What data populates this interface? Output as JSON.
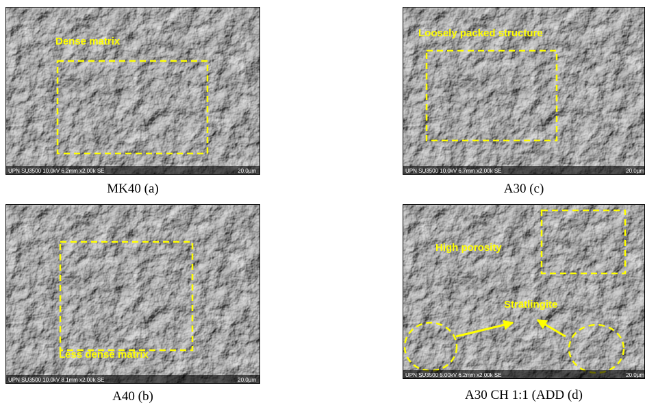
{
  "panels": [
    {
      "caption": "MK40 (a)",
      "annotations": [
        "Dense matrix"
      ],
      "info": "UPN SU3500 10.0kV 6.2mm x2.00k SE",
      "scale": "20.0µm"
    },
    {
      "caption": "A40 (b)",
      "annotations": [
        "Less dense matrix"
      ],
      "info": "UPN SU3500 10.0kV 8.1mm x2.00k SE",
      "scale": "20.0µm"
    },
    {
      "caption": "A30 (c)",
      "annotations": [
        "Loosely packed structure"
      ],
      "info": "UPN SU3500 10.0kV 6.7mm x2.00k SE",
      "scale": "20.0µm"
    },
    {
      "caption": "A30 CH 1:1 (ADD (d)",
      "annotations": [
        "High porosity",
        "Strätlingite"
      ],
      "info": "UPN SU3500 5.00kV 6.2mm x2.00k SE",
      "scale": "20.0µm"
    }
  ]
}
